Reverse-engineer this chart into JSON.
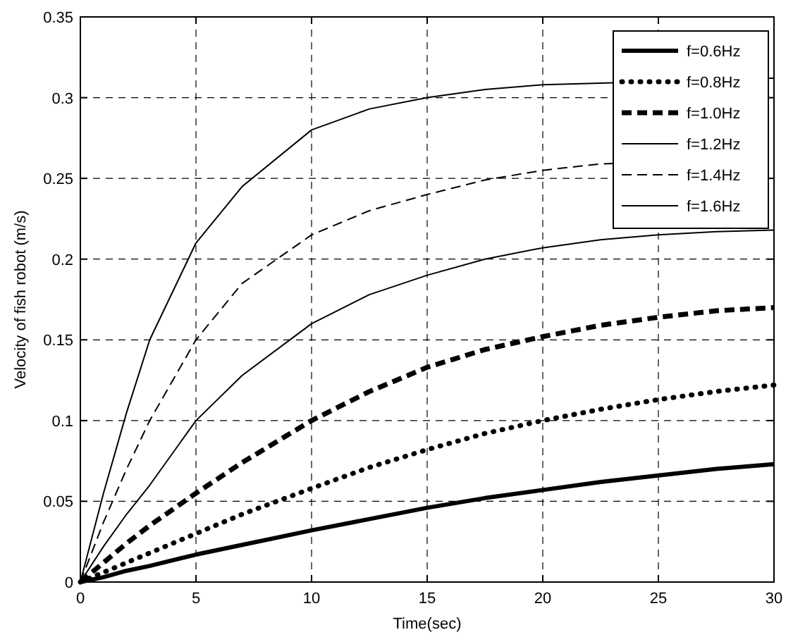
{
  "chart_data": {
    "type": "line",
    "xlabel": "Time(sec)",
    "ylabel": "Velocity of fish robot (m/s)",
    "xlim": [
      0,
      30
    ],
    "ylim": [
      0,
      0.35
    ],
    "xticks": [
      0,
      5,
      10,
      15,
      20,
      25,
      30
    ],
    "yticks": [
      0,
      0.05,
      0.1,
      0.15,
      0.2,
      0.25,
      0.3,
      0.35
    ],
    "grid": true,
    "legend": "top right",
    "x": [
      0,
      1,
      2,
      3,
      5,
      7,
      10,
      12.5,
      15,
      17.5,
      20,
      22.5,
      25,
      27.5,
      30
    ],
    "series": [
      {
        "name": "f=0.6Hz",
        "color": "#000000",
        "line_style": "solid",
        "values": [
          0,
          0.003,
          0.007,
          0.01,
          0.017,
          0.023,
          0.032,
          0.039,
          0.046,
          0.052,
          0.057,
          0.062,
          0.066,
          0.07,
          0.073
        ]
      },
      {
        "name": "f=0.8Hz",
        "color": "#000000",
        "line_style": "dotted",
        "values": [
          0,
          0.006,
          0.012,
          0.018,
          0.03,
          0.042,
          0.058,
          0.071,
          0.082,
          0.092,
          0.1,
          0.107,
          0.113,
          0.118,
          0.122
        ]
      },
      {
        "name": "f=1.0Hz",
        "color": "#000000",
        "line_style": "dashed",
        "values": [
          0,
          0.012,
          0.024,
          0.035,
          0.055,
          0.074,
          0.1,
          0.118,
          0.133,
          0.144,
          0.152,
          0.159,
          0.164,
          0.168,
          0.17
        ]
      },
      {
        "name": "f=1.2Hz",
        "color": "#000000",
        "line_style": "solid",
        "values": [
          0,
          0.022,
          0.042,
          0.06,
          0.1,
          0.128,
          0.16,
          0.178,
          0.19,
          0.2,
          0.207,
          0.212,
          0.215,
          0.217,
          0.218
        ]
      },
      {
        "name": "f=1.4Hz",
        "color": "#000000",
        "line_style": "dashed",
        "x": [
          0,
          1,
          2,
          3,
          5,
          7,
          10,
          12.5,
          15,
          17.5,
          20,
          22.5,
          29.7,
          30
        ],
        "values": [
          0,
          0.037,
          0.07,
          0.1,
          0.15,
          0.185,
          0.215,
          0.23,
          0.24,
          0.249,
          0.255,
          0.259,
          0.262,
          0.262
        ]
      },
      {
        "name": "f=1.6Hz",
        "color": "#000000",
        "line_style": "solid",
        "x": [
          0,
          1,
          2,
          3,
          5,
          7,
          10,
          12.5,
          15,
          17.5,
          20,
          22.5,
          29.7,
          30
        ],
        "values": [
          0,
          0.055,
          0.105,
          0.15,
          0.21,
          0.245,
          0.28,
          0.293,
          0.3,
          0.305,
          0.308,
          0.309,
          0.312,
          0.312
        ]
      }
    ]
  }
}
